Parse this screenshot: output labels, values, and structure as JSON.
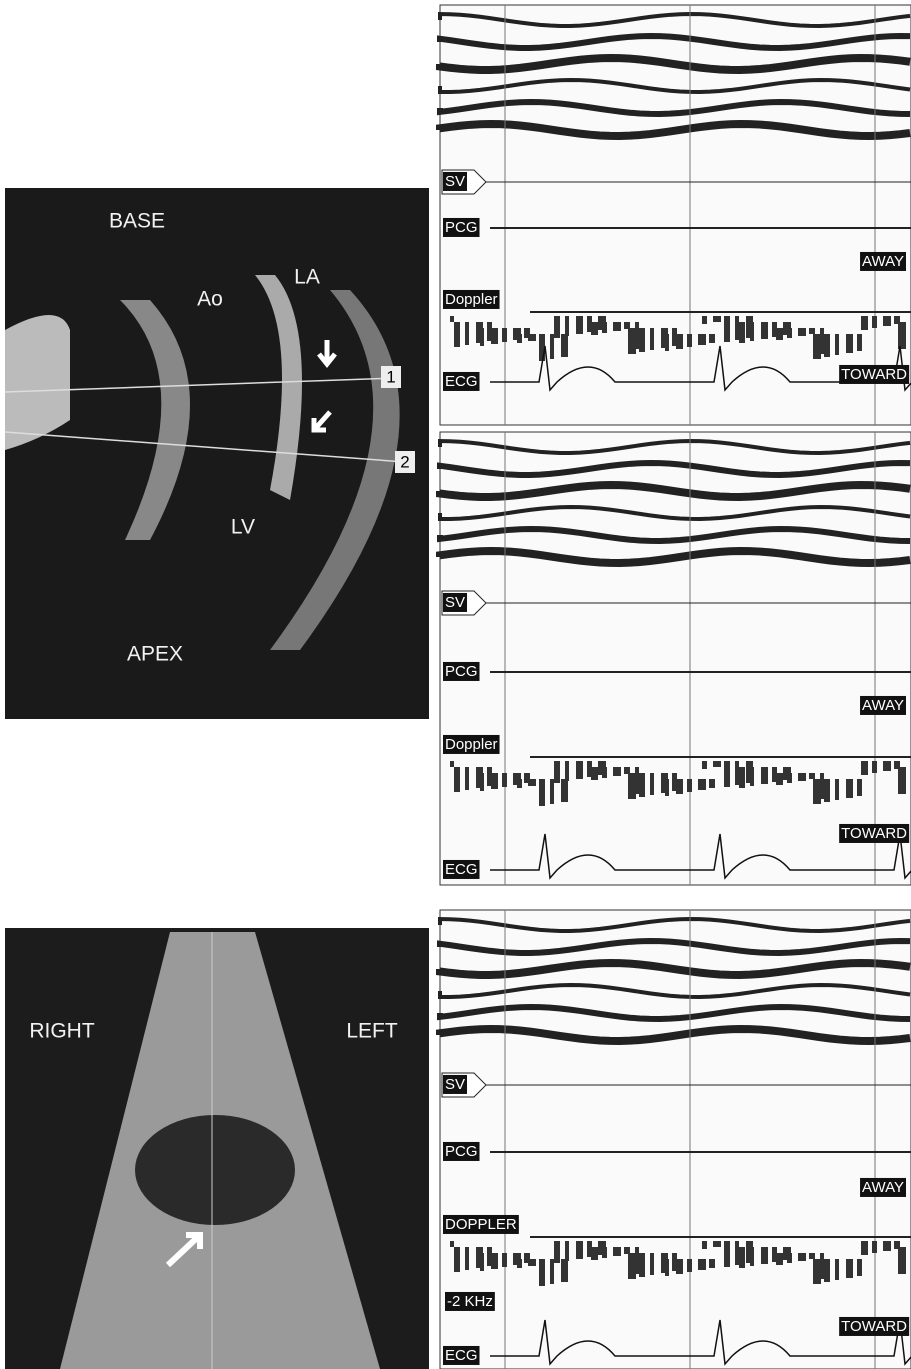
{
  "echo_top": {
    "labels": [
      "BASE",
      "Ao",
      "LA",
      "LV",
      "APEX"
    ],
    "markers": [
      "1",
      "2"
    ]
  },
  "echo_bottom": {
    "labels": [
      "RIGHT",
      "LEFT"
    ]
  },
  "traces": [
    {
      "sv": "SV",
      "pcg": "PCG",
      "doppler": "Doppler",
      "away": "AWAY",
      "toward": "TOWARD",
      "ecg": "ECG"
    },
    {
      "sv": "SV",
      "pcg": "PCG",
      "doppler": "Doppler",
      "away": "AWAY",
      "toward": "TOWARD",
      "ecg": "ECG"
    },
    {
      "sv": "SV",
      "pcg": "PCG",
      "doppler": "DOPPLER",
      "away": "AWAY",
      "scale": "-2 KHz",
      "toward": "TOWARD",
      "ecg": "ECG"
    }
  ]
}
